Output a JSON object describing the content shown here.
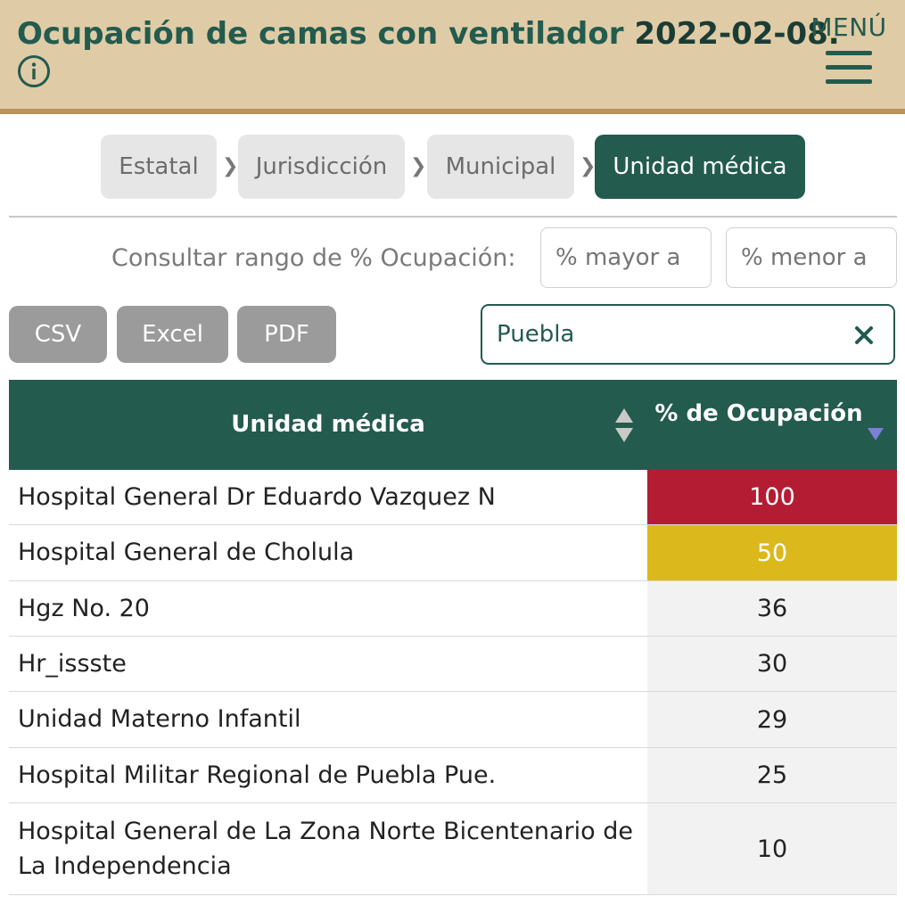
{
  "header": {
    "title": "Ocupación de camas con ventilador",
    "date": "2022-02-08.",
    "menu_label": "MENÚ"
  },
  "breadcrumbs": [
    {
      "label": "Estatal",
      "active": false
    },
    {
      "label": "Jurisdicción",
      "active": false
    },
    {
      "label": "Municipal",
      "active": false
    },
    {
      "label": "Unidad médica",
      "active": true
    }
  ],
  "breadcrumb_separator": "❯",
  "range_filter": {
    "label": "Consultar rango de % Ocupación:",
    "min_placeholder": "% mayor a",
    "max_placeholder": "% menor a"
  },
  "export_buttons": [
    "CSV",
    "Excel",
    "PDF"
  ],
  "search": {
    "value": "Puebla"
  },
  "table": {
    "columns": [
      "Unidad médica",
      "% de Ocupación"
    ],
    "rows": [
      {
        "name": "Hospital General Dr Eduardo Vazquez N",
        "pct": "100",
        "status": "red"
      },
      {
        "name": "Hospital General de Cholula",
        "pct": "50",
        "status": "yellow"
      },
      {
        "name": "Hgz No. 20",
        "pct": "36",
        "status": "normal"
      },
      {
        "name": "Hr_issste",
        "pct": "30",
        "status": "normal"
      },
      {
        "name": "Unidad Materno Infantil",
        "pct": "29",
        "status": "normal"
      },
      {
        "name": "Hospital Militar Regional de Puebla Pue.",
        "pct": "25",
        "status": "normal"
      },
      {
        "name": "Hospital General de La Zona Norte Bicentenario de La Independencia",
        "pct": "10",
        "status": "normal"
      }
    ]
  },
  "colors": {
    "brand_green": "#235b4e",
    "header_bg": "#dfcca6",
    "status_red": "#b41c33",
    "status_yellow": "#dbb81b"
  }
}
